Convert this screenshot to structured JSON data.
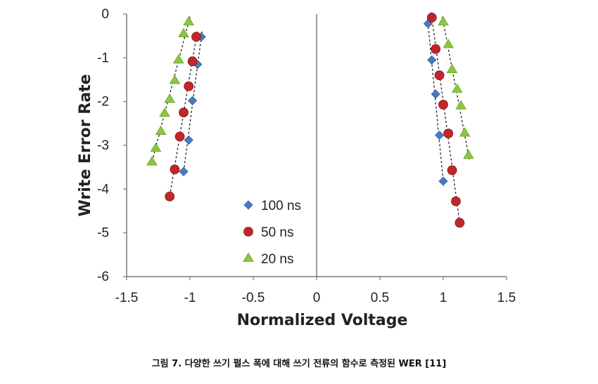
{
  "chart_data": {
    "type": "scatter",
    "title": "",
    "xlabel": "Normalized Voltage",
    "ylabel": "Write Error Rate",
    "xlim": [
      -1.5,
      1.5
    ],
    "ylim": [
      -6,
      0
    ],
    "x_ticks": [
      "-1.5",
      "-1",
      "-0.5",
      "0",
      "0.5",
      "1",
      "1.5"
    ],
    "y_ticks": [
      "0",
      "-1",
      "-2",
      "-3",
      "-4",
      "-5",
      "-6"
    ],
    "grid": false,
    "legend_position": "bottom-center",
    "series": [
      {
        "name": "100 ns",
        "marker": "diamond",
        "color": "#4a7bc1",
        "negative": [
          [
            -0.91,
            -0.52
          ],
          [
            -0.94,
            -1.15
          ],
          [
            -0.98,
            -1.98
          ],
          [
            -1.01,
            -2.88
          ],
          [
            -1.05,
            -3.6
          ]
        ],
        "positive": [
          [
            0.88,
            -0.22
          ],
          [
            0.91,
            -1.05
          ],
          [
            0.94,
            -1.83
          ],
          [
            0.97,
            -2.77
          ],
          [
            1.0,
            -3.82
          ]
        ]
      },
      {
        "name": "50 ns",
        "marker": "circle",
        "color": "#c0272d",
        "negative": [
          [
            -0.95,
            -0.52
          ],
          [
            -0.98,
            -1.08
          ],
          [
            -1.01,
            -1.65
          ],
          [
            -1.05,
            -2.25
          ],
          [
            -1.08,
            -2.8
          ],
          [
            -1.12,
            -3.55
          ],
          [
            -1.16,
            -4.17
          ]
        ],
        "positive": [
          [
            0.91,
            -0.08
          ],
          [
            0.94,
            -0.8
          ],
          [
            0.97,
            -1.4
          ],
          [
            1.0,
            -2.07
          ],
          [
            1.04,
            -2.73
          ],
          [
            1.07,
            -3.57
          ],
          [
            1.1,
            -4.28
          ],
          [
            1.13,
            -4.77
          ]
        ]
      },
      {
        "name": "20 ns",
        "marker": "triangle",
        "color": "#8dc63f",
        "negative": [
          [
            -1.01,
            -0.18
          ],
          [
            -1.05,
            -0.45
          ],
          [
            -1.09,
            -1.05
          ],
          [
            -1.12,
            -1.52
          ],
          [
            -1.16,
            -1.95
          ],
          [
            -1.2,
            -2.27
          ],
          [
            -1.23,
            -2.68
          ],
          [
            -1.27,
            -3.07
          ],
          [
            -1.3,
            -3.38
          ]
        ],
        "positive": [
          [
            1.0,
            -0.18
          ],
          [
            1.04,
            -0.7
          ],
          [
            1.07,
            -1.27
          ],
          [
            1.11,
            -1.72
          ],
          [
            1.14,
            -2.1
          ],
          [
            1.17,
            -2.72
          ],
          [
            1.2,
            -3.23
          ]
        ]
      }
    ]
  },
  "caption": {
    "text": "그림 7. 다양한 쓰기 펄스 폭에 대해 쓰기 전류의 함수로 측정된 WER [11]"
  }
}
